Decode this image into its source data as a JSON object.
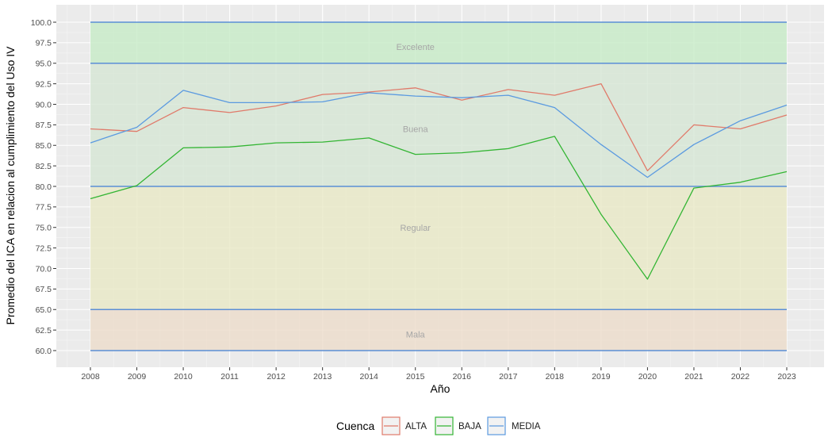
{
  "chart_data": {
    "type": "line",
    "xlabel": "Año",
    "ylabel": "Promedio del ICA en relacion al cumplimiento del Uso IV",
    "xlim": [
      2008,
      2023
    ],
    "ylim": [
      60,
      100
    ],
    "grid": true,
    "legend": {
      "title": "Cuenca",
      "position": "bottom",
      "entries": [
        "ALTA",
        "BAJA",
        "MEDIA"
      ]
    },
    "x_ticks": [
      2008,
      2009,
      2010,
      2011,
      2012,
      2013,
      2014,
      2015,
      2016,
      2017,
      2018,
      2019,
      2020,
      2021,
      2022,
      2023
    ],
    "y_ticks": [
      60.0,
      62.5,
      65.0,
      67.5,
      70.0,
      72.5,
      75.0,
      77.5,
      80.0,
      82.5,
      85.0,
      87.5,
      90.0,
      92.5,
      95.0,
      97.5,
      100.0
    ],
    "bands": [
      {
        "label": "Excelente",
        "from": 95,
        "to": 100,
        "color": "#c7ebc7"
      },
      {
        "label": "Buena",
        "from": 80,
        "to": 95,
        "color": "#d6e6d4"
      },
      {
        "label": "Regular",
        "from": 65,
        "to": 80,
        "color": "#e8e8c5"
      },
      {
        "label": "Mala",
        "from": 60,
        "to": 65,
        "color": "#ecdcca"
      }
    ],
    "reference_lines": [
      60,
      65,
      80,
      95,
      100
    ],
    "reference_line_color": "#5b8fd6",
    "x": [
      2008,
      2009,
      2010,
      2011,
      2012,
      2013,
      2014,
      2015,
      2016,
      2017,
      2018,
      2019,
      2020,
      2021,
      2022,
      2023
    ],
    "series": [
      {
        "name": "ALTA",
        "color": "#e07a6a",
        "values": [
          87.0,
          86.7,
          89.6,
          89.0,
          89.8,
          91.2,
          91.5,
          92.0,
          90.5,
          91.8,
          91.1,
          92.5,
          81.9,
          87.5,
          87.0,
          88.7
        ]
      },
      {
        "name": "BAJA",
        "color": "#33b533",
        "values": [
          78.5,
          80.1,
          84.7,
          84.8,
          85.3,
          85.4,
          85.9,
          83.9,
          84.1,
          84.6,
          86.1,
          76.6,
          68.7,
          79.8,
          80.5,
          81.8
        ]
      },
      {
        "name": "MEDIA",
        "color": "#5b9ae0",
        "values": [
          85.3,
          87.2,
          91.7,
          90.2,
          90.2,
          90.3,
          91.4,
          91.0,
          90.8,
          91.1,
          89.6,
          85.1,
          81.1,
          85.1,
          88.0,
          89.9
        ]
      }
    ]
  }
}
